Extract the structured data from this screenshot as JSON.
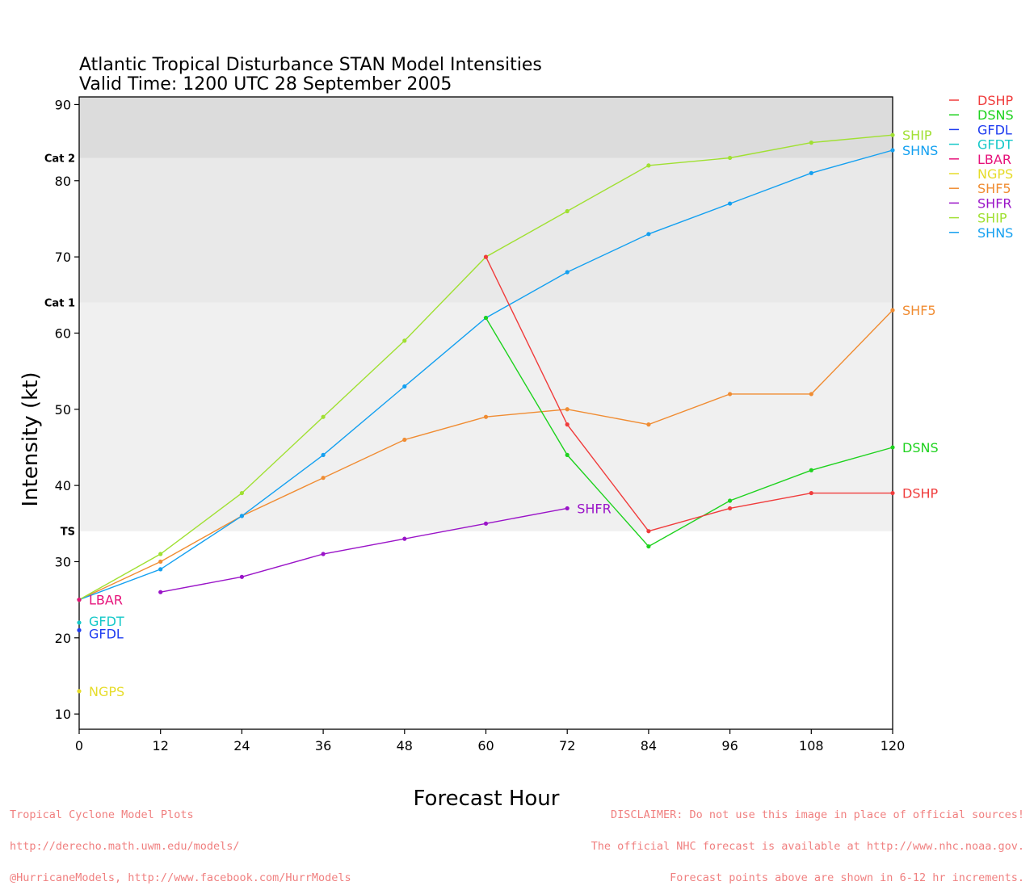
{
  "chart_data": {
    "type": "line",
    "title": "Atlantic Tropical Disturbance STAN Model Intensities",
    "subtitle": "Valid Time: 1200 UTC 28 September 2005",
    "xlabel": "Forecast Hour",
    "ylabel": "Intensity (kt)",
    "xlim": [
      0,
      120
    ],
    "ylim": [
      8,
      91
    ],
    "xticks": [
      0,
      12,
      24,
      36,
      48,
      60,
      72,
      84,
      96,
      108,
      120
    ],
    "yticks": [
      10,
      20,
      30,
      40,
      50,
      60,
      70,
      80,
      90
    ],
    "categories": [
      {
        "label": "TS",
        "value": 34
      },
      {
        "label": "Cat 1",
        "value": 64
      },
      {
        "label": "Cat 2",
        "value": 83
      }
    ],
    "category_band_colors": [
      "#f0f0f0",
      "#e9e9e9",
      "#dcdcdc"
    ],
    "legend_position": "right",
    "series": [
      {
        "name": "DSHP",
        "color": "#f03c3c",
        "x": [
          60,
          72,
          84,
          96,
          108,
          120
        ],
        "y": [
          70,
          48,
          34,
          37,
          39,
          39
        ]
      },
      {
        "name": "DSNS",
        "color": "#1ed21e",
        "x": [
          60,
          72,
          84,
          96,
          108,
          120
        ],
        "y": [
          62,
          44,
          32,
          38,
          42,
          45
        ]
      },
      {
        "name": "GFDL",
        "color": "#1e3cf0",
        "x": [
          0
        ],
        "y": [
          21
        ]
      },
      {
        "name": "GFDT",
        "color": "#14c8c8",
        "x": [
          0
        ],
        "y": [
          22
        ]
      },
      {
        "name": "LBAR",
        "color": "#e6127a",
        "x": [
          0
        ],
        "y": [
          25
        ]
      },
      {
        "name": "NGPS",
        "color": "#e6dc28",
        "x": [
          0
        ],
        "y": [
          13
        ]
      },
      {
        "name": "SHF5",
        "color": "#f08c32",
        "x": [
          0,
          12,
          24,
          36,
          48,
          60,
          72,
          84,
          96,
          108,
          120
        ],
        "y": [
          25,
          30,
          36,
          41,
          46,
          49,
          50,
          48,
          52,
          52,
          63
        ]
      },
      {
        "name": "SHFR",
        "color": "#9a14c8",
        "x": [
          12,
          24,
          36,
          48,
          60,
          72
        ],
        "y": [
          26,
          28,
          31,
          33,
          35,
          37
        ]
      },
      {
        "name": "SHIP",
        "color": "#a0e032",
        "x": [
          0,
          12,
          24,
          36,
          48,
          60,
          72,
          84,
          96,
          108,
          120
        ],
        "y": [
          25,
          31,
          39,
          49,
          59,
          70,
          76,
          82,
          83,
          85,
          86
        ]
      },
      {
        "name": "SHNS",
        "color": "#14a0f0",
        "x": [
          0,
          12,
          24,
          36,
          48,
          60,
          72,
          84,
          96,
          108,
          120
        ],
        "y": [
          25,
          29,
          36,
          44,
          53,
          62,
          68,
          73,
          77,
          81,
          84
        ]
      }
    ]
  },
  "footer": {
    "left": [
      "Tropical Cyclone Model Plots",
      "http://derecho.math.uwm.edu/models/",
      "@HurricaneModels, http://www.facebook.com/HurrModels"
    ],
    "right": [
      "DISCLAIMER: Do not use this image in place of official sources!",
      "The official NHC forecast is available at http://www.nhc.noaa.gov.",
      "Forecast points above are shown in 6-12 hr increments."
    ]
  }
}
